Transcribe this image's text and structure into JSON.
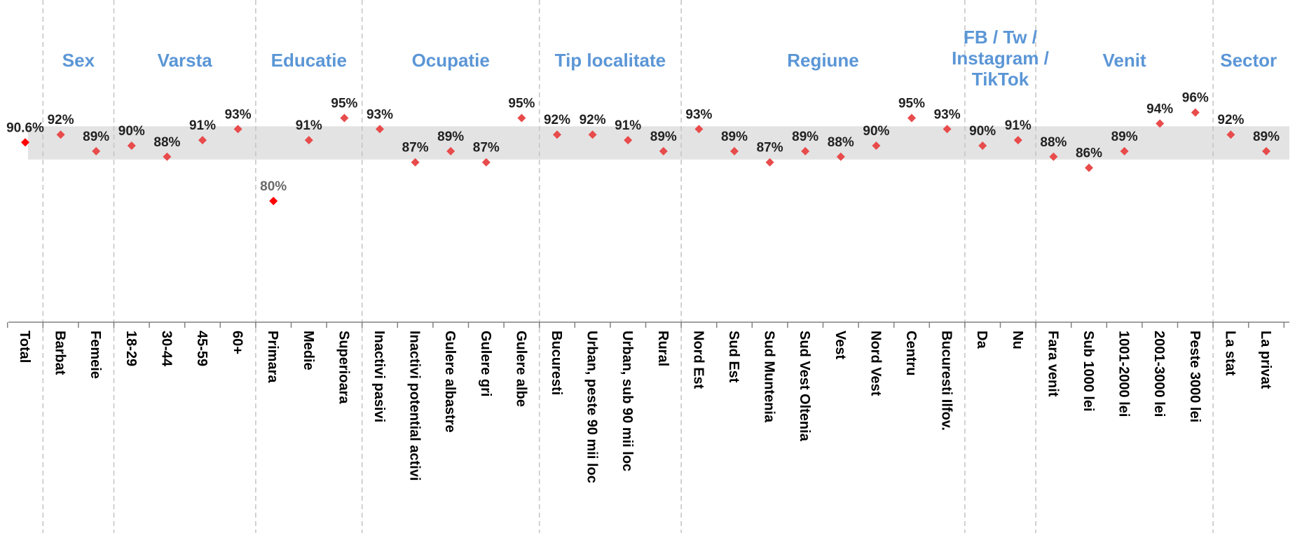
{
  "chart_data": {
    "type": "scatter",
    "title": "",
    "xlabel": "",
    "ylabel": "",
    "categories": [
      "Total",
      "Barbat",
      "Femeie",
      "18-29",
      "30-44",
      "45-59",
      "60+",
      "Primara",
      "Medie",
      "Superioara",
      "Inactivi pasivi",
      "Inactivi potential activi",
      "Gulere albastre",
      "Gulere gri",
      "Gulere albe",
      "Bucuresti",
      "Urban, peste 90 mii loc",
      "Urban, sub 90 mii loc",
      "Rural",
      "Nord Est",
      "Sud Est",
      "Sud Muntenia",
      "Sud Vest Oltenia",
      "Vest",
      "Nord Vest",
      "Centru",
      "Bucuresti Ilfov.",
      "Da",
      "Nu",
      "Fara venit",
      "Sub 1000 lei",
      "1001-2000 lei",
      "2001-3000 lei",
      "Peste 3000 lei",
      "La stat",
      "La privat"
    ],
    "series": [
      {
        "values": [
          90.6,
          92,
          89,
          90,
          88,
          91,
          93,
          80,
          91,
          95,
          93,
          87,
          89,
          87,
          95,
          92,
          92,
          91,
          89,
          93,
          89,
          87,
          89,
          88,
          90,
          95,
          93,
          90,
          91,
          88,
          86,
          89,
          94,
          96,
          92,
          89
        ],
        "value_labels": [
          "90.6%",
          "92%",
          "89%",
          "90%",
          "88%",
          "91%",
          "93%",
          "80%",
          "91%",
          "95%",
          "93%",
          "87%",
          "89%",
          "87%",
          "95%",
          "92%",
          "92%",
          "91%",
          "89%",
          "93%",
          "89%",
          "87%",
          "89%",
          "88%",
          "90%",
          "95%",
          "93%",
          "90%",
          "91%",
          "88%",
          "86%",
          "89%",
          "94%",
          "96%",
          "92%",
          "89%"
        ]
      }
    ],
    "groups": [
      {
        "title": "Sex",
        "start": 1,
        "end": 2
      },
      {
        "title": "Varsta",
        "start": 3,
        "end": 6
      },
      {
        "title": "Educatie",
        "start": 7,
        "end": 9
      },
      {
        "title": "Ocupatie",
        "start": 10,
        "end": 14
      },
      {
        "title": "Tip localitate",
        "start": 15,
        "end": 18
      },
      {
        "title": "Regiune",
        "start": 19,
        "end": 26
      },
      {
        "title": "FB / Tw /\nInstagram /\nTikTok",
        "start": 27,
        "end": 28
      },
      {
        "title": "Venit",
        "start": 29,
        "end": 33
      },
      {
        "title": "Sector",
        "start": 34,
        "end": 35
      }
    ],
    "confidence_band": [
      87.5,
      93.5
    ],
    "ylim": [
      60,
      110
    ],
    "grid": false,
    "legend": "none",
    "colors": {
      "marker": "#e84b4b",
      "marker_highlight": "#ff0000",
      "band": "#e3e3e3",
      "group_title": "#5b96d6",
      "label_default": "#222222",
      "label_highlight": "#6a6a6a",
      "axis": "#808080",
      "separator": "#c4c4c4"
    },
    "highlight_indices": [
      0,
      7
    ]
  }
}
